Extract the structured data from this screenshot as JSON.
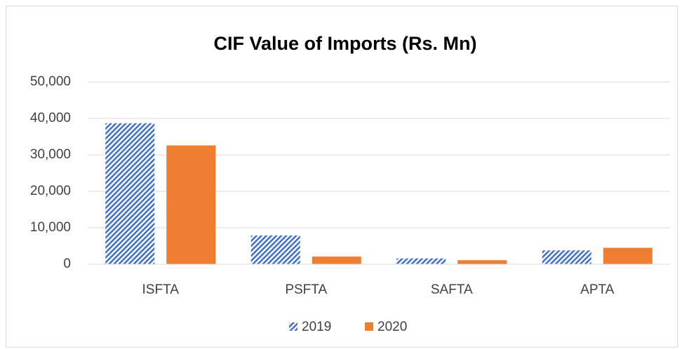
{
  "chart_data": {
    "type": "bar",
    "title": "CIF Value of Imports (Rs. Mn)",
    "categories": [
      "ISFTA",
      "PSFTA",
      "SAFTA",
      "APTA"
    ],
    "series": [
      {
        "name": "2019",
        "color": "#4472c4",
        "hatch": true,
        "values": [
          38700,
          7900,
          1600,
          3800
        ]
      },
      {
        "name": "2020",
        "color": "#ed7d31",
        "hatch": false,
        "values": [
          32600,
          2100,
          1100,
          4500
        ]
      }
    ],
    "ylim": [
      0,
      50000
    ],
    "yticks": [
      0,
      {
        "value": 10000,
        "label": "10,000"
      },
      {
        "value": 20000,
        "label": "20,000"
      },
      {
        "value": 30000,
        "label": "30,000"
      },
      {
        "value": 40000,
        "label": "40,000"
      },
      {
        "value": 50000,
        "label": "50,000"
      }
    ],
    "grid": true,
    "legend": "bottom"
  }
}
